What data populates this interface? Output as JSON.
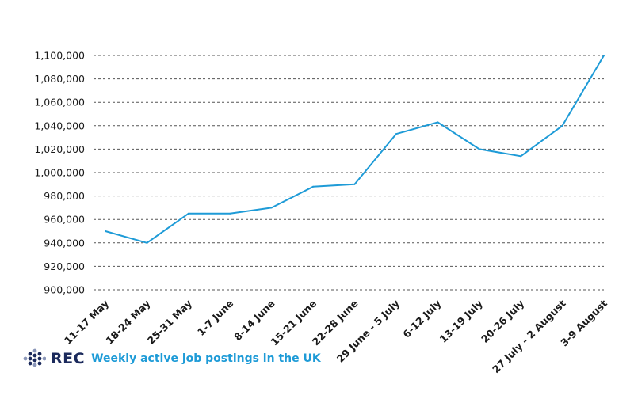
{
  "chart_data": {
    "type": "line",
    "categories": [
      "11-17 May",
      "18-24 May",
      "25-31 May",
      "1-7 June",
      "8-14 June",
      "15-21 June",
      "22-28 June",
      "29 June - 5 July",
      "6-12 July",
      "13-19 July",
      "20-26 July",
      "27 July - 2 August",
      "3-9 August"
    ],
    "series": [
      {
        "values": [
          950000,
          940000,
          965000,
          965000,
          970000,
          988000,
          990000,
          1033000,
          1043000,
          1020000,
          1014000,
          1040000,
          1100000
        ]
      }
    ],
    "yticks": [
      "900,000",
      "920,000",
      "940,000",
      "960,000",
      "980,000",
      "1,000,000",
      "1,020,000",
      "1,040,000",
      "1,060,000",
      "1,080,000",
      "1,100,000"
    ],
    "ylim": [
      900000,
      1100000
    ],
    "grid": true,
    "line_color": "#1e9bd7"
  },
  "footer": {
    "logo_text": "REC",
    "caption": "Weekly active job postings in the UK",
    "logo_color": "#1b2a5c",
    "accent_color": "#1e9bd7"
  }
}
